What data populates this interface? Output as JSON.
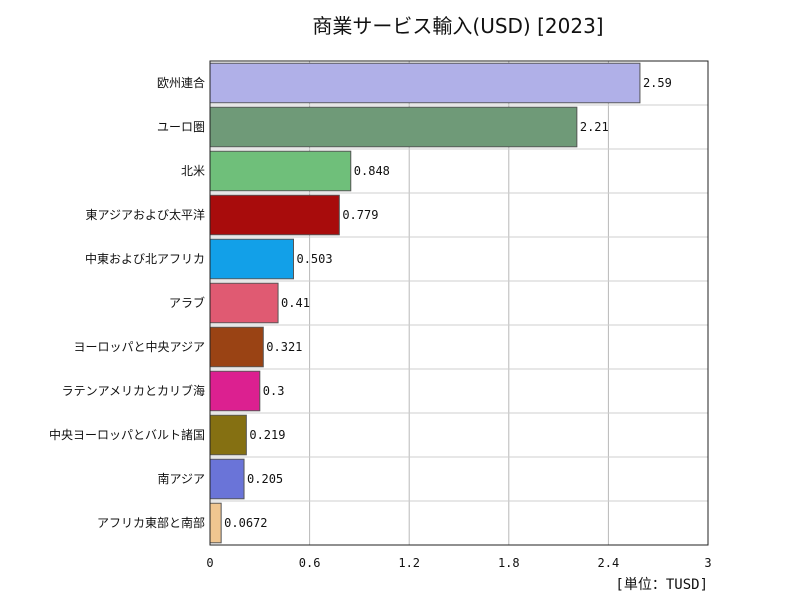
{
  "chart_data": {
    "type": "bar",
    "orientation": "horizontal",
    "title": "商業サービス輸入(USD) [2023]",
    "unit_label": "[単位：TUSD]",
    "categories": [
      "欧州連合",
      "ユーロ圏",
      "北米",
      "東アジアおよび太平洋",
      "中東および北アフリカ",
      "アラブ",
      "ヨーロッパと中央アジア",
      "ラテンアメリカとカリブ海",
      "中央ヨーロッパとバルト諸国",
      "南アジア",
      "アフリカ東部と南部"
    ],
    "values": [
      2.59,
      2.21,
      0.848,
      0.779,
      0.503,
      0.41,
      0.321,
      0.3,
      0.219,
      0.205,
      0.0672
    ],
    "value_labels": [
      "2.59",
      "2.21",
      "0.848",
      "0.779",
      "0.503",
      "0.41",
      "0.321",
      "0.3",
      "0.219",
      "0.205",
      "0.0672"
    ],
    "colors": [
      "#b0b0e8",
      "#6f9a78",
      "#6fbf7a",
      "#a80c0c",
      "#12a0e8",
      "#e05a72",
      "#9a4314",
      "#dc2090",
      "#857012",
      "#6a74d8",
      "#f0c690"
    ],
    "xlim": [
      0,
      3
    ],
    "xticks": [
      0,
      0.6,
      1.2,
      1.8,
      2.4,
      3
    ],
    "xtick_labels": [
      "0",
      "0.6",
      "1.2",
      "1.8",
      "2.4",
      "3"
    ],
    "grid": true
  }
}
